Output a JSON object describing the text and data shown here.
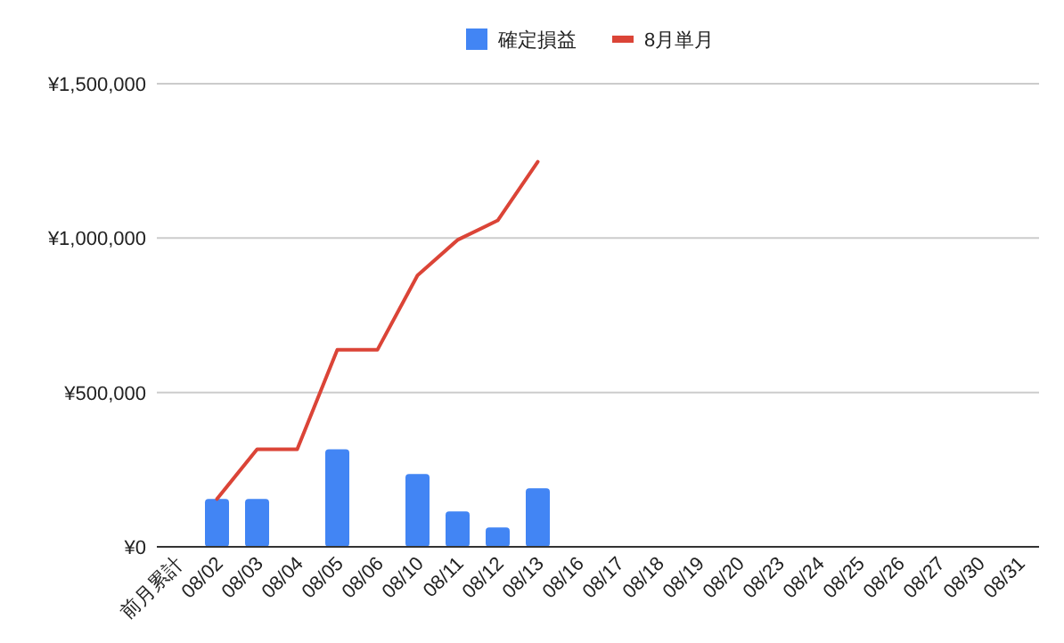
{
  "chart_data": {
    "type": "bar",
    "categories": [
      "前月累計",
      "08/02",
      "08/03",
      "08/04",
      "08/05",
      "08/06",
      "08/10",
      "08/11",
      "08/12",
      "08/13",
      "08/16",
      "08/17",
      "08/18",
      "08/19",
      "08/20",
      "08/23",
      "08/24",
      "08/25",
      "08/26",
      "08/27",
      "08/30",
      "08/31"
    ],
    "series": [
      {
        "name": "確定損益",
        "color": "#4285f4",
        "values": [
          null,
          155000,
          155000,
          null,
          316000,
          null,
          236000,
          115000,
          63000,
          190000,
          null,
          null,
          null,
          null,
          null,
          null,
          null,
          null,
          null,
          null,
          null,
          null
        ]
      },
      {
        "name": "8月単月",
        "type": "line",
        "color": "#db4437",
        "values": [
          null,
          155000,
          316000,
          316000,
          638000,
          638000,
          879000,
          994000,
          1057000,
          1247000,
          null,
          null,
          null,
          null,
          null,
          null,
          null,
          null,
          null,
          null,
          null,
          null
        ]
      }
    ],
    "ylim": [
      0,
      1500000
    ],
    "yticks": [
      {
        "value": 0,
        "label": "¥0"
      },
      {
        "value": 500000,
        "label": "¥500,000"
      },
      {
        "value": 1000000,
        "label": "¥1,000,000"
      },
      {
        "value": 1500000,
        "label": "¥1,500,000"
      }
    ],
    "grid": "y",
    "legend": "top"
  }
}
